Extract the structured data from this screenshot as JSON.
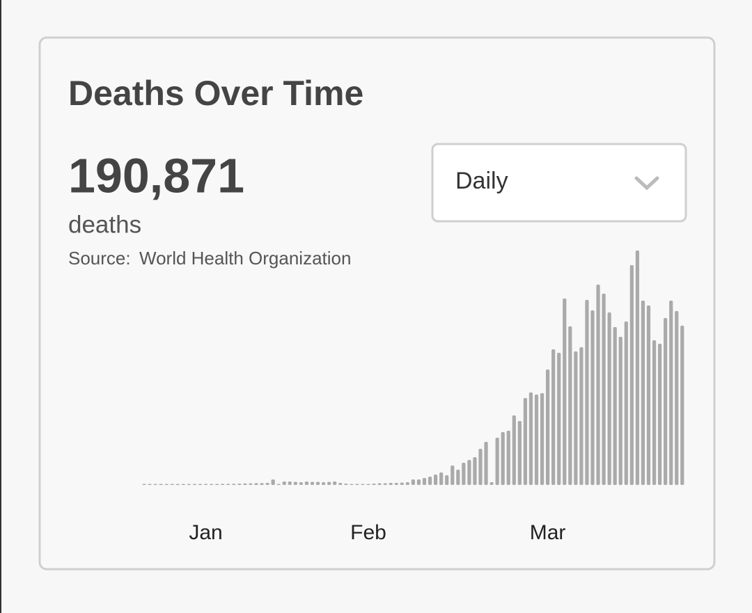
{
  "card": {
    "title": "Deaths Over Time",
    "total": "190,871",
    "unit": "deaths",
    "source_label": "Source:",
    "source": "World Health Organization",
    "dropdown": "Daily"
  },
  "chart_data": {
    "type": "bar",
    "color": "#aaaaaa",
    "categories": [
      null,
      null,
      null,
      null,
      null,
      null,
      null,
      null,
      null,
      null,
      null,
      "Jan",
      null,
      null,
      null,
      null,
      null,
      null,
      null,
      null,
      null,
      null,
      null,
      null,
      null,
      null,
      null,
      null,
      null,
      null,
      null,
      null,
      null,
      null,
      null,
      null,
      null,
      null,
      null,
      null,
      "Feb",
      null,
      null,
      null,
      null,
      null,
      null,
      null,
      null,
      null,
      null,
      null,
      null,
      null,
      null,
      null,
      null,
      null,
      null,
      null,
      null,
      null,
      null,
      null,
      null,
      null,
      null,
      null,
      null,
      null,
      null,
      null,
      "Mar",
      null,
      null,
      null,
      null,
      null,
      null,
      null,
      null,
      null,
      null,
      null,
      null,
      null,
      null,
      null,
      null,
      null,
      null,
      null,
      null,
      null,
      null,
      null,
      null
    ],
    "values": [
      10,
      10,
      10,
      12,
      14,
      16,
      18,
      20,
      20,
      22,
      24,
      26,
      28,
      30,
      32,
      34,
      36,
      40,
      44,
      48,
      52,
      56,
      60,
      160,
      20,
      100,
      100,
      90,
      80,
      100,
      90,
      90,
      80,
      90,
      100,
      60,
      40,
      30,
      30,
      20,
      30,
      40,
      50,
      50,
      60,
      60,
      70,
      80,
      160,
      160,
      200,
      240,
      300,
      360,
      280,
      560,
      440,
      640,
      720,
      800,
      1040,
      1240,
      80,
      1360,
      1520,
      1560,
      2000,
      1840,
      2500,
      2660,
      2600,
      2640,
      3320,
      3900,
      3800,
      5360,
      4560,
      3840,
      3960,
      5320,
      5020,
      5760,
      5500,
      4960,
      4540,
      4260,
      4700,
      6320,
      6740,
      5300,
      5160,
      4160,
      4060,
      4800,
      5300,
      5000,
      4580
    ]
  }
}
